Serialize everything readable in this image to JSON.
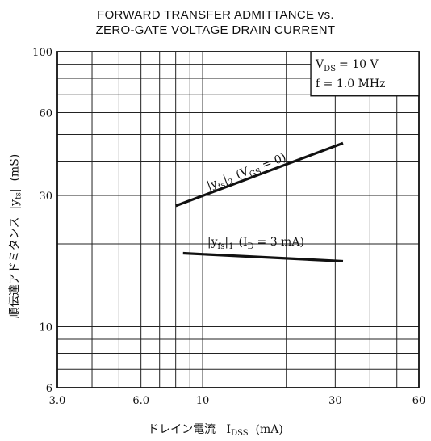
{
  "chart_data": {
    "type": "line",
    "title_lines": [
      "FORWARD TRANSFER ADMITTANCE vs.",
      "ZERO-GATE VOLTAGE DRAIN CURRENT"
    ],
    "xlabel": {
      "prefix": "ドレイン電流",
      "symbol": "I",
      "sub": "DSS",
      "unit": "(mA)"
    },
    "ylabel": {
      "prefix": "順伝達アドミタンス",
      "symbol": "|y",
      "sub": "fs",
      "close": "|",
      "unit": "(mS)"
    },
    "x_scale": "log",
    "y_scale": "log",
    "xlim": [
      3,
      60
    ],
    "ylim": [
      6,
      100
    ],
    "x_ticks": [
      {
        "value": 3,
        "label": "3.0"
      },
      {
        "value": 6,
        "label": "6.0"
      },
      {
        "value": 10,
        "label": "10"
      },
      {
        "value": 30,
        "label": "30"
      },
      {
        "value": 60,
        "label": "60"
      }
    ],
    "y_ticks": [
      {
        "value": 6,
        "label": "6"
      },
      {
        "value": 10,
        "label": "10"
      },
      {
        "value": 30,
        "label": "30"
      },
      {
        "value": 60,
        "label": "60"
      },
      {
        "value": 100,
        "label": "100"
      }
    ],
    "x_grid": [
      3,
      4,
      5,
      6,
      7,
      8,
      9,
      10,
      20,
      30,
      40,
      50,
      60
    ],
    "y_grid": [
      6,
      7,
      8,
      9,
      10,
      20,
      30,
      40,
      50,
      60,
      70,
      80,
      90,
      100
    ],
    "grid": true,
    "conditions": {
      "line1": {
        "main": "V",
        "sub": "DS",
        "rest": "= 10 V"
      },
      "line2": "f = 1.0 MHz"
    },
    "series": [
      {
        "label": {
          "a": "|y",
          "b": "fs",
          "c": "|",
          "d": "2",
          "e": "(V",
          "f": "GS",
          "g": "= 0)"
        },
        "x": [
          8,
          32
        ],
        "y": [
          27.5,
          46.5
        ]
      },
      {
        "label": {
          "a": "|y",
          "b": "fs",
          "c": "|",
          "d": "1",
          "e": "(I",
          "f": "D",
          "g": "= 3 mA)"
        },
        "x": [
          8.5,
          32
        ],
        "y": [
          18.5,
          17.3
        ]
      }
    ]
  }
}
